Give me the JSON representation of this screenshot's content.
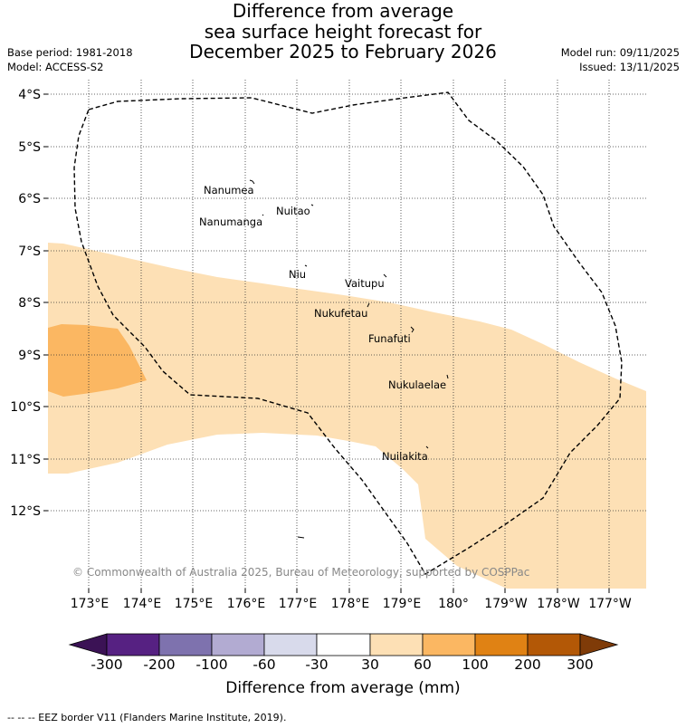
{
  "header": {
    "title_line1": "Difference from average",
    "title_line2": "sea surface height forecast for",
    "title_line3": "December 2025 to February 2026",
    "base_period": "Base period: 1981-2018",
    "model": "Model: ACCESS-S2",
    "model_run": "Model run: 09/11/2025",
    "issued": "Issued: 13/11/2025"
  },
  "map": {
    "lat_labels": [
      "4°S",
      "5°S",
      "6°S",
      "7°S",
      "8°S",
      "9°S",
      "10°S",
      "11°S",
      "12°S"
    ],
    "lon_labels": [
      "173°E",
      "174°E",
      "175°E",
      "176°E",
      "177°E",
      "178°E",
      "179°E",
      "180°",
      "179°W",
      "178°W",
      "177°W"
    ],
    "islands": [
      {
        "name": "Nanumea"
      },
      {
        "name": "Nuitao"
      },
      {
        "name": "Nanumanga"
      },
      {
        "name": "Niu"
      },
      {
        "name": "Vaitupu"
      },
      {
        "name": "Nukufetau"
      },
      {
        "name": "Funafuti"
      },
      {
        "name": "Nukulaelae"
      },
      {
        "name": "Nuilakita"
      }
    ],
    "copyright": "© Commonwealth of Australia 2025, Bureau of Meteorology, supported by COSPPac",
    "fill_colors": {
      "band_30_60": "#fde0b5",
      "band_60_100": "#fbb762"
    }
  },
  "colorbar": {
    "ticks": [
      "-300",
      "-200",
      "-100",
      "-60",
      "-30",
      "30",
      "60",
      "100",
      "200",
      "300"
    ],
    "colors": [
      "#3b1255",
      "#562182",
      "#7e72ae",
      "#b2abd2",
      "#d8daeb",
      "#ffffff",
      "#fde0b5",
      "#fbb762",
      "#e08214",
      "#b35806",
      "#7f3b08"
    ],
    "label": "Difference from average (mm)"
  },
  "footer": {
    "legend_line": "--  --  -- EEZ border V11 (Flanders Marine Institute, 2019)."
  }
}
